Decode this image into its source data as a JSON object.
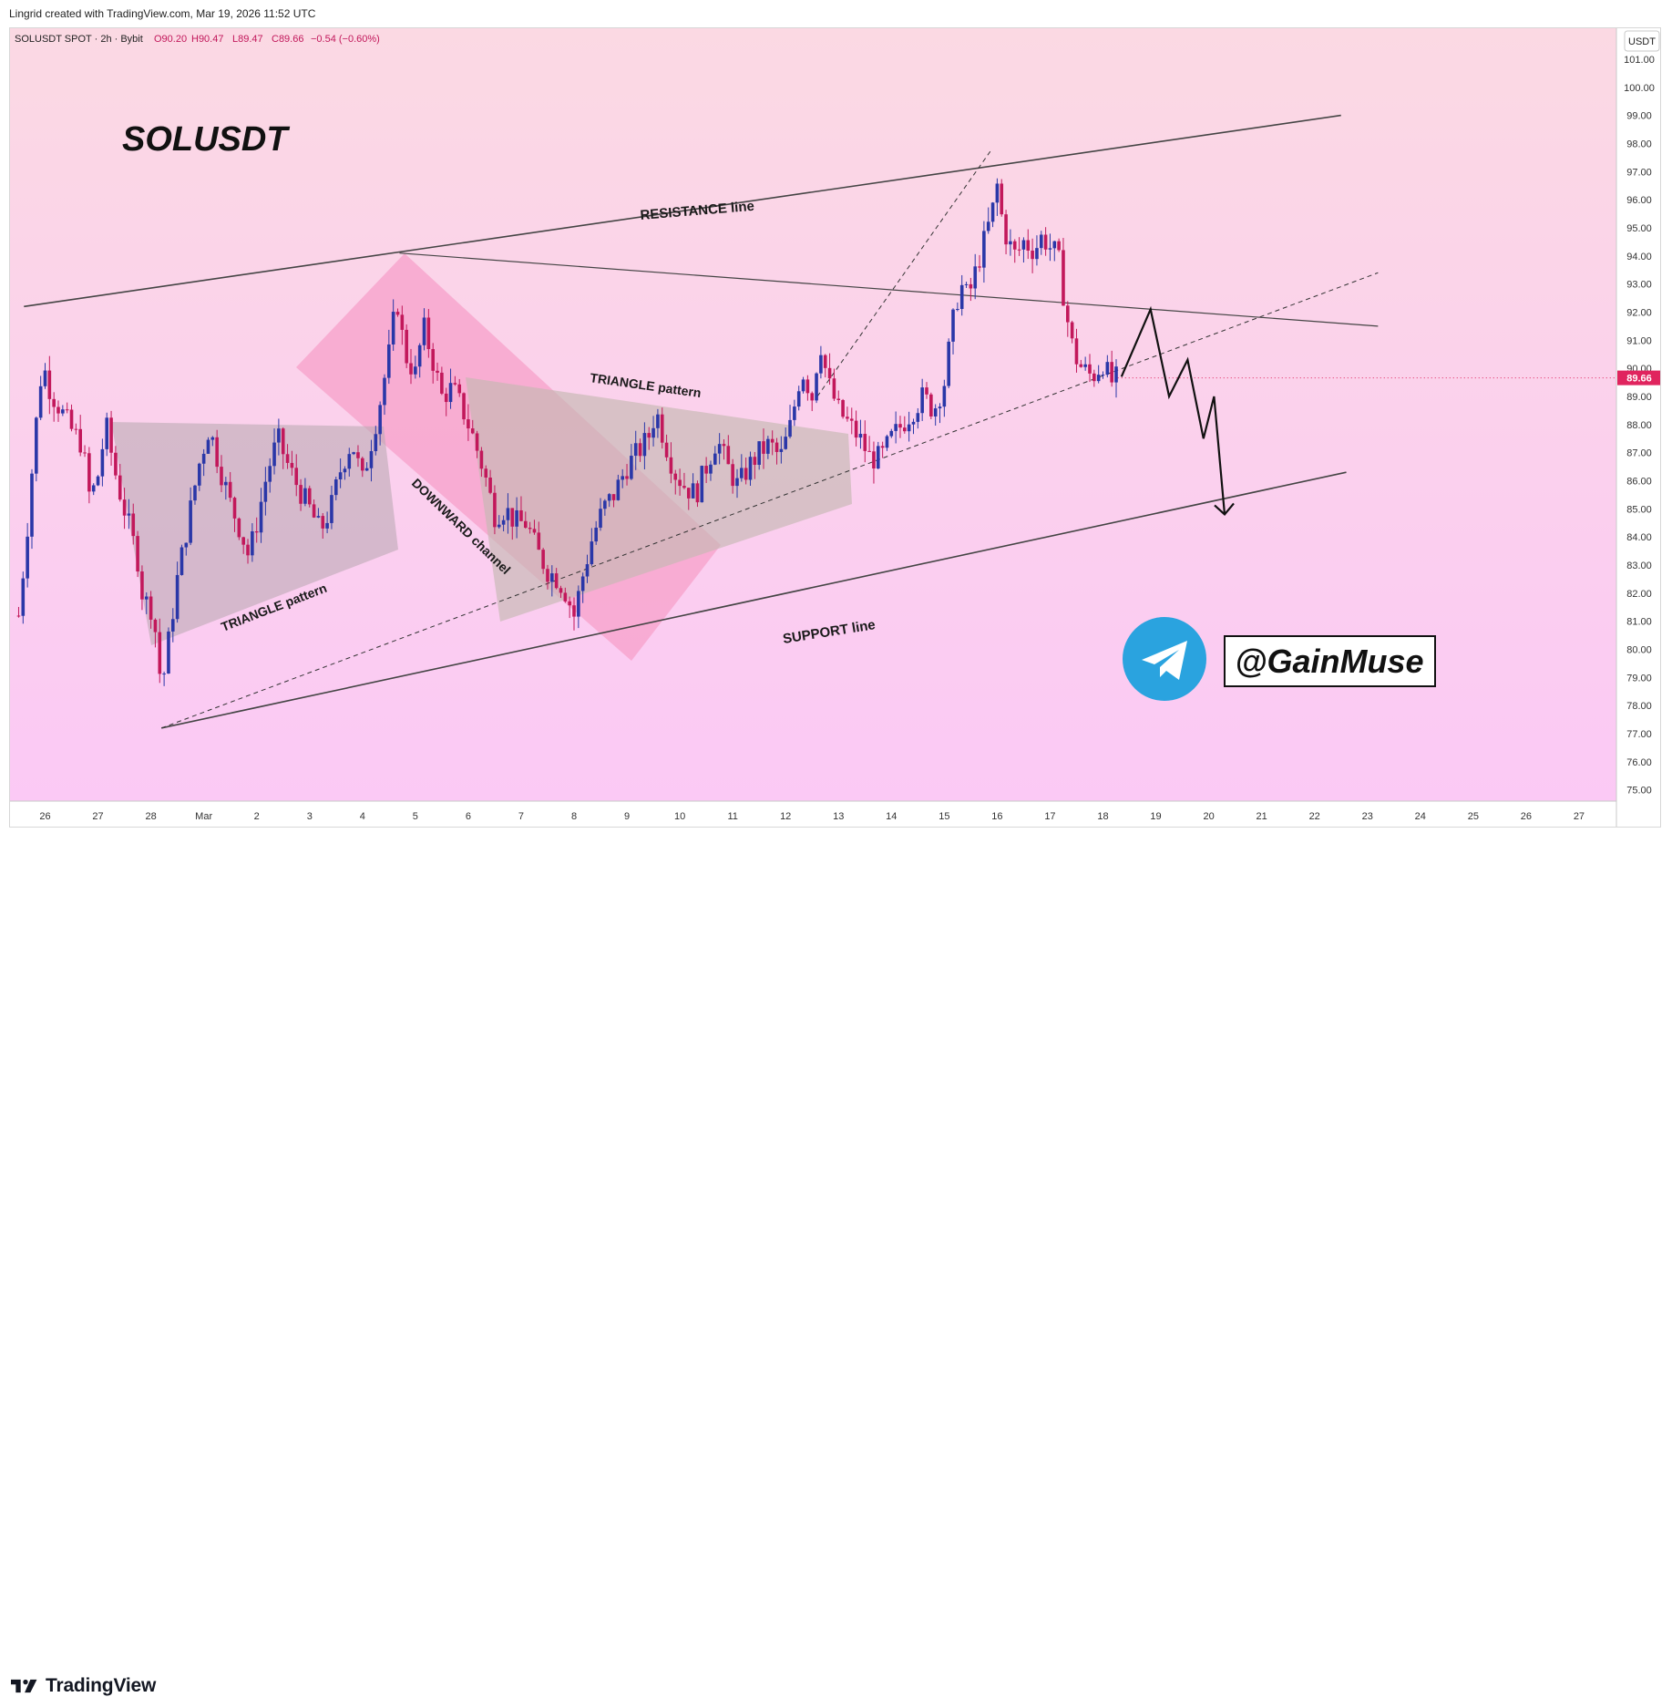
{
  "header": {
    "credit": "Lingrid created with TradingView.com, Mar 19, 2026 11:52 UTC"
  },
  "legend": {
    "symbol": "SOLUSDT SPOT · 2h · Bybit",
    "open": "O90.20",
    "high": "H90.47",
    "low": "L89.47",
    "close": "C89.66",
    "change": "−0.54 (−0.60%)"
  },
  "footer": {
    "brand": "TradingView"
  },
  "colors": {
    "bull": "#2a37a8",
    "bear": "#c2185b",
    "price_tag": "#e0245e",
    "telegram": "#2aa3df",
    "grad_top": "#fbd9e3",
    "grad_bottom": "#fbc9f5"
  },
  "chart_data": {
    "type": "candlestick",
    "currency": "USDT",
    "current_price": "89.66",
    "ylim": [
      74.6,
      102.1
    ],
    "y_ticks": [
      "101.00",
      "100.00",
      "99.00",
      "98.00",
      "97.00",
      "96.00",
      "95.00",
      "94.00",
      "93.00",
      "92.00",
      "91.00",
      "90.00",
      "89.00",
      "88.00",
      "87.00",
      "86.00",
      "85.00",
      "84.00",
      "83.00",
      "82.00",
      "81.00",
      "80.00",
      "79.00",
      "78.00",
      "77.00",
      "76.00",
      "75.00"
    ],
    "x_ticks": [
      "26",
      "27",
      "28",
      "Mar",
      "2",
      "3",
      "4",
      "5",
      "6",
      "7",
      "8",
      "9",
      "10",
      "11",
      "12",
      "13",
      "14",
      "15",
      "16",
      "17",
      "18",
      "19",
      "20",
      "21",
      "22",
      "23",
      "24",
      "25",
      "26",
      "27"
    ],
    "price_path": [
      [
        25.5,
        81.2
      ],
      [
        25.65,
        84
      ],
      [
        25.8,
        87.5
      ],
      [
        25.95,
        90.2
      ],
      [
        26.1,
        89.2
      ],
      [
        26.3,
        88.5
      ],
      [
        26.5,
        87.8
      ],
      [
        26.7,
        87.3
      ],
      [
        26.85,
        85.3
      ],
      [
        27.0,
        86.2
      ],
      [
        27.15,
        88
      ],
      [
        27.3,
        86.5
      ],
      [
        27.45,
        85.3
      ],
      [
        27.6,
        84.3
      ],
      [
        27.75,
        83.2
      ],
      [
        27.85,
        81.8
      ],
      [
        28.0,
        81.5
      ],
      [
        28.1,
        80.5
      ],
      [
        28.2,
        78.5
      ],
      [
        28.35,
        80.5
      ],
      [
        28.5,
        82.5
      ],
      [
        28.7,
        84.5
      ],
      [
        28.9,
        86.5
      ],
      [
        29.1,
        87.9
      ],
      [
        29.3,
        86.5
      ],
      [
        29.5,
        85.2
      ],
      [
        29.7,
        84.2
      ],
      [
        29.85,
        83.3
      ],
      [
        30.0,
        84.5
      ],
      [
        30.2,
        86.3
      ],
      [
        30.4,
        87.5
      ],
      [
        30.6,
        86.5
      ],
      [
        30.8,
        85.7
      ],
      [
        31.0,
        85
      ],
      [
        31.2,
        84.2
      ],
      [
        31.4,
        85
      ],
      [
        31.6,
        86.5
      ],
      [
        31.8,
        87.4
      ],
      [
        32.0,
        86
      ],
      [
        32.3,
        88.5
      ],
      [
        32.5,
        90.5
      ],
      [
        32.65,
        92.5
      ],
      [
        32.8,
        90.5
      ],
      [
        33.0,
        89.8
      ],
      [
        33.15,
        91.5
      ],
      [
        33.3,
        90.5
      ],
      [
        33.5,
        89
      ],
      [
        33.7,
        89.3
      ],
      [
        33.9,
        88.5
      ],
      [
        34.1,
        87.5
      ],
      [
        34.3,
        86.3
      ],
      [
        34.5,
        84.8
      ],
      [
        34.7,
        85
      ],
      [
        34.9,
        84.5
      ],
      [
        35.1,
        84.5
      ],
      [
        35.3,
        83.5
      ],
      [
        35.5,
        82.8
      ],
      [
        35.7,
        82.5
      ],
      [
        35.85,
        82
      ],
      [
        36.0,
        81.2
      ],
      [
        36.15,
        82.5
      ],
      [
        36.35,
        84
      ],
      [
        36.55,
        85
      ],
      [
        36.75,
        85.5
      ],
      [
        37.0,
        86.5
      ],
      [
        37.2,
        87
      ],
      [
        37.4,
        87.5
      ],
      [
        37.55,
        88.5
      ],
      [
        37.7,
        87.5
      ],
      [
        37.9,
        86.3
      ],
      [
        38.1,
        85.8
      ],
      [
        38.3,
        85.5
      ],
      [
        38.5,
        86.5
      ],
      [
        38.7,
        87.5
      ],
      [
        38.9,
        86.5
      ],
      [
        39.1,
        85.8
      ],
      [
        39.3,
        86.5
      ],
      [
        39.5,
        87
      ],
      [
        39.7,
        87.3
      ],
      [
        39.9,
        86.8
      ],
      [
        40.1,
        88
      ],
      [
        40.3,
        90
      ],
      [
        40.5,
        89
      ],
      [
        40.65,
        91
      ],
      [
        40.8,
        89.5
      ],
      [
        41.0,
        88.5
      ],
      [
        41.2,
        88
      ],
      [
        41.4,
        87.5
      ],
      [
        41.6,
        86.8
      ],
      [
        41.8,
        86.8
      ],
      [
        42.0,
        87.5
      ],
      [
        42.2,
        88
      ],
      [
        42.4,
        88.5
      ],
      [
        42.6,
        89
      ],
      [
        42.8,
        88.5
      ],
      [
        43.0,
        89.5
      ],
      [
        43.15,
        91.5
      ],
      [
        43.3,
        93
      ],
      [
        43.45,
        92.5
      ],
      [
        43.6,
        93.5
      ],
      [
        43.75,
        94.5
      ],
      [
        43.9,
        95.5
      ],
      [
        44.0,
        96.5
      ],
      [
        44.1,
        95.2
      ],
      [
        44.2,
        94.5
      ],
      [
        44.35,
        94
      ],
      [
        44.5,
        94.5
      ],
      [
        44.7,
        94.2
      ],
      [
        44.85,
        94.7
      ],
      [
        45.0,
        94.3
      ],
      [
        45.15,
        94
      ],
      [
        45.3,
        92
      ],
      [
        45.45,
        90.5
      ],
      [
        45.6,
        90
      ],
      [
        45.8,
        89.7
      ],
      [
        46.0,
        90.2
      ],
      [
        46.15,
        89.5
      ],
      [
        46.28,
        89.66
      ]
    ],
    "forecast_path": [
      [
        46.35,
        89.7
      ],
      [
        46.9,
        92.1
      ],
      [
        47.25,
        89
      ],
      [
        47.6,
        90.3
      ],
      [
        47.9,
        87.5
      ],
      [
        48.1,
        89
      ],
      [
        48.3,
        84.8
      ]
    ],
    "overlays": {
      "resistance_line": [
        [
          25.6,
          92.2
        ],
        [
          50.5,
          99.0
        ]
      ],
      "support_line": [
        [
          28.2,
          77.2
        ],
        [
          50.6,
          86.3
        ]
      ],
      "dashed_trend": [
        [
          28.2,
          77.2
        ],
        [
          51.2,
          93.4
        ]
      ],
      "dashed_to_peak": [
        [
          40.6,
          89.0
        ],
        [
          43.9,
          97.8
        ]
      ],
      "pivot_trend": [
        [
          32.7,
          94.1
        ],
        [
          51.2,
          91.5
        ]
      ]
    },
    "labels": {
      "title": "SOLUSDT",
      "resistance": "RESISTANCE line",
      "support": "SUPPORT line",
      "downward": "DOWNWARD channel",
      "triangle1": "TRIANGLE pattern",
      "triangle2": "TRIANGLE pattern",
      "handle": "@GainMuse"
    }
  }
}
